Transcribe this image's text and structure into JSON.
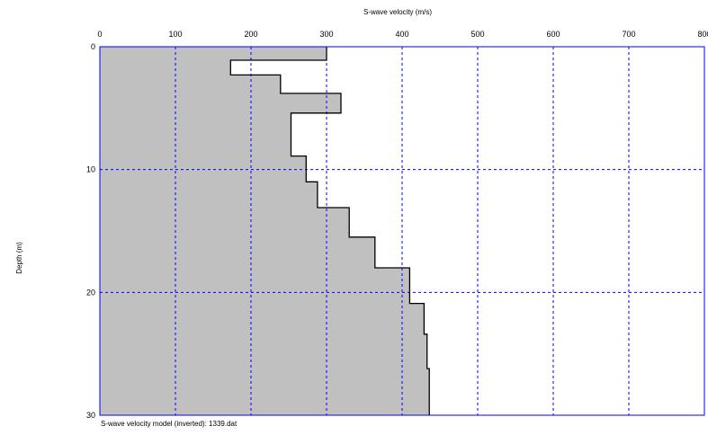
{
  "chart_data": {
    "type": "area",
    "title": "",
    "xlabel": "S-wave velocity (m/s)",
    "ylabel": "Depth (m)",
    "xlim": [
      0,
      800
    ],
    "ylim": [
      0,
      30
    ],
    "y_inverted": true,
    "x_axis_position": "top",
    "x_ticks": [
      0,
      100,
      200,
      300,
      400,
      500,
      600,
      700,
      800
    ],
    "y_ticks": [
      0,
      10,
      20,
      30
    ],
    "grid": true,
    "grid_style": "dashed",
    "fill_color": "#c0c0c0",
    "grid_color": "#0000ff",
    "frame_color": "#0000ff",
    "series": [
      {
        "layers": [
          {
            "top": 0.0,
            "bottom": 1.1,
            "velocity": 300
          },
          {
            "top": 1.1,
            "bottom": 2.3,
            "velocity": 173
          },
          {
            "top": 2.3,
            "bottom": 3.8,
            "velocity": 239
          },
          {
            "top": 3.8,
            "bottom": 5.4,
            "velocity": 319
          },
          {
            "top": 5.4,
            "bottom": 8.9,
            "velocity": 253
          },
          {
            "top": 8.9,
            "bottom": 11.0,
            "velocity": 273
          },
          {
            "top": 11.0,
            "bottom": 13.1,
            "velocity": 288
          },
          {
            "top": 13.1,
            "bottom": 15.5,
            "velocity": 330
          },
          {
            "top": 15.5,
            "bottom": 18.0,
            "velocity": 364
          },
          {
            "top": 18.0,
            "bottom": 20.9,
            "velocity": 410
          },
          {
            "top": 20.9,
            "bottom": 23.4,
            "velocity": 429
          },
          {
            "top": 23.4,
            "bottom": 26.2,
            "velocity": 433
          },
          {
            "top": 26.2,
            "bottom": 30.0,
            "velocity": 436
          }
        ]
      }
    ]
  },
  "footer": {
    "caption": "S-wave velocity model (inverted): 1339.dat"
  }
}
